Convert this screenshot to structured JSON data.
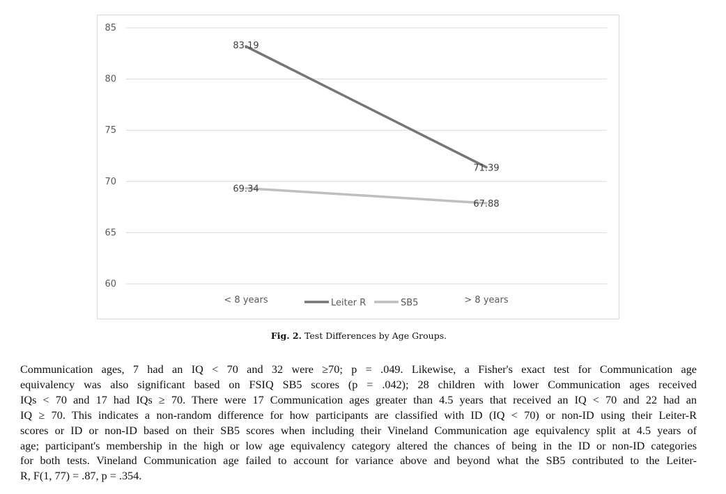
{
  "figure": {
    "caption_label": "Fig. 2.",
    "caption_text": "Test Differences by Age Groups."
  },
  "chart_data": {
    "type": "line",
    "categories": [
      "< 8 years",
      "> 8 years"
    ],
    "series": [
      {
        "name": "Leiter R",
        "values": [
          83.19,
          71.39
        ],
        "labels": [
          "83.19",
          "71.39"
        ],
        "color": "#767676"
      },
      {
        "name": "SB5",
        "values": [
          69.34,
          67.88
        ],
        "labels": [
          "69.34",
          "67.88"
        ],
        "color": "#bfbfbf"
      }
    ],
    "ylim": [
      60,
      85
    ],
    "yticks": [
      "60",
      "65",
      "70",
      "75",
      "80",
      "85"
    ],
    "grid": true,
    "legend_position": "bottom",
    "title": "",
    "xlabel": "",
    "ylabel": ""
  },
  "body": {
    "lines": [
      "Communication ages, 7 had an IQ < 70 and 32 were ≥70; p = .049. Likewise, a Fisher's exact test for Communication age",
      "equivalency was also significant based on FSIQ SB5 scores (p = .042); 28 children with lower Communication ages received",
      "IQs < 70 and 17 had IQs ≥ 70. There were 17 Communication ages greater than 4.5 years that received an IQ < 70 and 22 had an",
      "IQ ≥ 70. This indicates a non-random difference for how participants are classified with ID (IQ < 70) or non-ID using their Leiter-R",
      "scores or ID or non-ID based on their SB5 scores when including their Vineland Communication age equivalency split at 4.5 years of",
      "age; participant's membership in the high or low age equivalency category altered the chances of being in the ID or non-ID categories",
      "for both tests. Vineland Communication age failed to account for variance above and beyond what the SB5 contributed to the Leiter-",
      "R, F(1, 77) = .87, p = .354."
    ]
  }
}
